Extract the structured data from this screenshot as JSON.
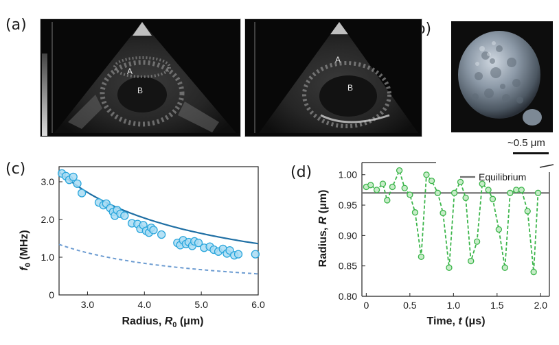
{
  "panels": {
    "a": "(a)",
    "b": "(b)",
    "c": "(c)",
    "d": "(d)"
  },
  "ultrasound": {
    "left_labels": [
      "A",
      "B"
    ],
    "right_labels": [
      "A",
      "B"
    ]
  },
  "scale_bar": {
    "label": "~0.5 μm"
  },
  "chart_data": [
    {
      "type": "scatter",
      "panel": "c",
      "xlabel_main": "Radius, ",
      "xlabel_sym": "R",
      "xlabel_sub": "0",
      "xlabel_unit": " (μm)",
      "ylabel_sym": "f",
      "ylabel_sub": "0",
      "ylabel_unit": " (MHz)",
      "xlim": [
        2.5,
        6.0
      ],
      "ylim": [
        0,
        3.4
      ],
      "xticks": [
        "3.0",
        "4.0",
        "5.0",
        "6.0"
      ],
      "xtick_values": [
        3.0,
        4.0,
        5.0,
        6.0
      ],
      "yticks": [
        "0",
        "1.0",
        "2.0",
        "3.0"
      ],
      "ytick_values": [
        0,
        1.0,
        2.0,
        3.0
      ],
      "points": [
        {
          "x": 2.55,
          "y": 3.22
        },
        {
          "x": 2.62,
          "y": 3.15
        },
        {
          "x": 2.68,
          "y": 3.05
        },
        {
          "x": 2.75,
          "y": 3.13
        },
        {
          "x": 2.82,
          "y": 2.95
        },
        {
          "x": 2.9,
          "y": 2.7
        },
        {
          "x": 3.2,
          "y": 2.45
        },
        {
          "x": 3.28,
          "y": 2.38
        },
        {
          "x": 3.33,
          "y": 2.42
        },
        {
          "x": 3.4,
          "y": 2.3
        },
        {
          "x": 3.45,
          "y": 2.2
        },
        {
          "x": 3.48,
          "y": 2.1
        },
        {
          "x": 3.52,
          "y": 2.25
        },
        {
          "x": 3.58,
          "y": 2.15
        },
        {
          "x": 3.65,
          "y": 2.1
        },
        {
          "x": 3.78,
          "y": 1.9
        },
        {
          "x": 3.88,
          "y": 1.88
        },
        {
          "x": 3.93,
          "y": 1.75
        },
        {
          "x": 3.98,
          "y": 1.85
        },
        {
          "x": 4.03,
          "y": 1.7
        },
        {
          "x": 4.08,
          "y": 1.65
        },
        {
          "x": 4.12,
          "y": 1.78
        },
        {
          "x": 4.16,
          "y": 1.72
        },
        {
          "x": 4.3,
          "y": 1.6
        },
        {
          "x": 4.58,
          "y": 1.38
        },
        {
          "x": 4.63,
          "y": 1.32
        },
        {
          "x": 4.68,
          "y": 1.45
        },
        {
          "x": 4.73,
          "y": 1.35
        },
        {
          "x": 4.78,
          "y": 1.4
        },
        {
          "x": 4.84,
          "y": 1.3
        },
        {
          "x": 4.88,
          "y": 1.42
        },
        {
          "x": 4.95,
          "y": 1.38
        },
        {
          "x": 5.05,
          "y": 1.25
        },
        {
          "x": 5.15,
          "y": 1.28
        },
        {
          "x": 5.22,
          "y": 1.2
        },
        {
          "x": 5.3,
          "y": 1.15
        },
        {
          "x": 5.38,
          "y": 1.22
        },
        {
          "x": 5.45,
          "y": 1.1
        },
        {
          "x": 5.5,
          "y": 1.18
        },
        {
          "x": 5.58,
          "y": 1.05
        },
        {
          "x": 5.65,
          "y": 1.08
        },
        {
          "x": 5.95,
          "y": 1.08
        }
      ],
      "fit_solid": {
        "a": 8.15,
        "note": "y = a / x"
      },
      "fit_dashed": {
        "a": 3.35,
        "note": "y = a / x"
      }
    },
    {
      "type": "line",
      "panel": "d",
      "xlabel_main": "Time, ",
      "xlabel_sym": "t",
      "xlabel_unit": " (μs)",
      "ylabel_main": "Radius, ",
      "ylabel_sym": "R",
      "ylabel_unit": " (μm)",
      "xlim": [
        -0.05,
        2.1
      ],
      "ylim": [
        0.8,
        1.02
      ],
      "xticks": [
        "0",
        "0.5",
        "1.0",
        "1.5",
        "2.0"
      ],
      "xtick_values": [
        0,
        0.5,
        1.0,
        1.5,
        2.0
      ],
      "yticks": [
        "0.80",
        "0.85",
        "0.90",
        "0.95",
        "1.00"
      ],
      "ytick_values": [
        0.8,
        0.85,
        0.9,
        0.95,
        1.0
      ],
      "equilibrium": 0.97,
      "legend": "Equilibrium",
      "x": [
        0.0,
        0.05,
        0.12,
        0.19,
        0.24,
        0.3,
        0.38,
        0.44,
        0.5,
        0.56,
        0.63,
        0.69,
        0.75,
        0.82,
        0.88,
        0.95,
        1.01,
        1.08,
        1.14,
        1.2,
        1.27,
        1.33,
        1.4,
        1.45,
        1.52,
        1.59,
        1.65,
        1.72,
        1.78,
        1.85,
        1.92,
        1.97
      ],
      "values": [
        0.98,
        0.983,
        0.975,
        0.985,
        0.958,
        0.98,
        1.007,
        0.978,
        0.967,
        0.938,
        0.865,
        1.0,
        0.99,
        0.97,
        0.937,
        0.847,
        0.97,
        0.988,
        0.962,
        0.858,
        0.89,
        0.985,
        0.975,
        0.96,
        0.91,
        0.847,
        0.97,
        0.975,
        0.975,
        0.94,
        0.84,
        0.97
      ]
    }
  ],
  "colors": {
    "scatter_fill": "#a9dcf3",
    "scatter_stroke": "#2aa6dc",
    "fit_solid": "#1f6fa4",
    "fit_dashed": "#6b9bd1",
    "line_green": "#3bb54a",
    "point_fill": "#c7ecc8",
    "equilibrium": "#6b6b6b"
  }
}
